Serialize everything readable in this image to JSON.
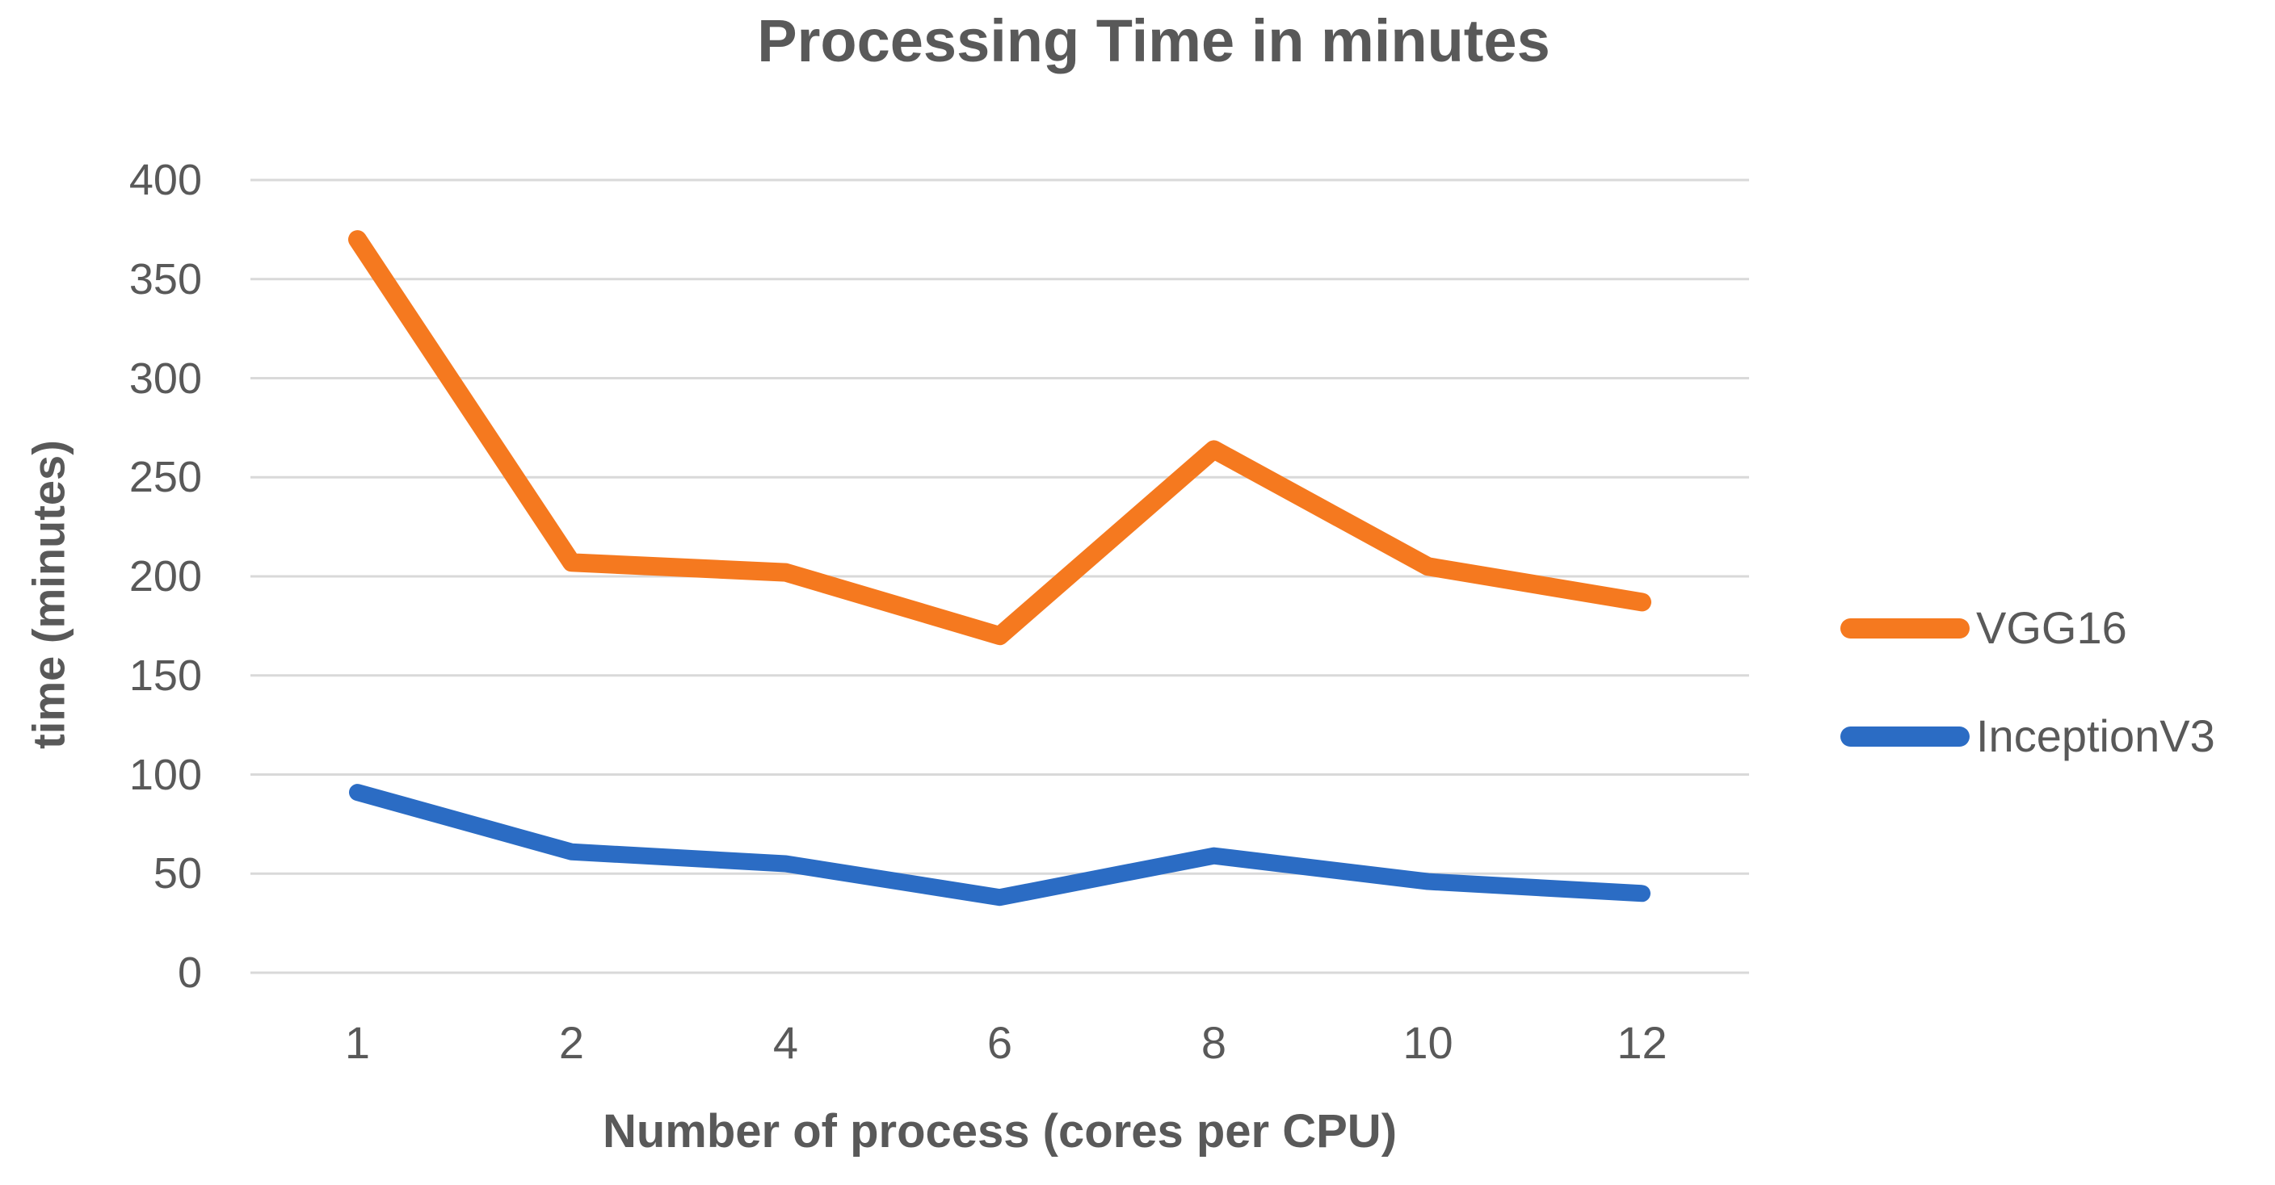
{
  "chart": {
    "title": "Processing Time in minutes",
    "xlabel": "Number of process (cores per CPU)",
    "ylabel": "time (minutes)"
  },
  "chart_data": {
    "type": "line",
    "title": "Processing Time in minutes",
    "xlabel": "Number of process (cores per CPU)",
    "ylabel": "time (minutes)",
    "categories": [
      "1",
      "2",
      "4",
      "6",
      "8",
      "10",
      "12"
    ],
    "series": [
      {
        "name": "VGG16",
        "color": "#F5791F",
        "stroke_width": 23,
        "values": [
          370,
          207,
          202,
          170,
          264,
          205,
          187
        ]
      },
      {
        "name": "InceptionV3",
        "color": "#2B6CC4",
        "stroke_width": 21,
        "values": [
          91,
          61,
          55,
          38,
          59,
          46,
          40
        ]
      }
    ],
    "ylim": [
      0,
      400
    ],
    "ytick_step": 50,
    "grid": "horizontal-only",
    "legend_position": "right-center",
    "colors": {
      "gridline": "#D9D9D9",
      "axis_text": "#595959",
      "title_text": "#595959",
      "background": "#FFFFFF"
    }
  }
}
